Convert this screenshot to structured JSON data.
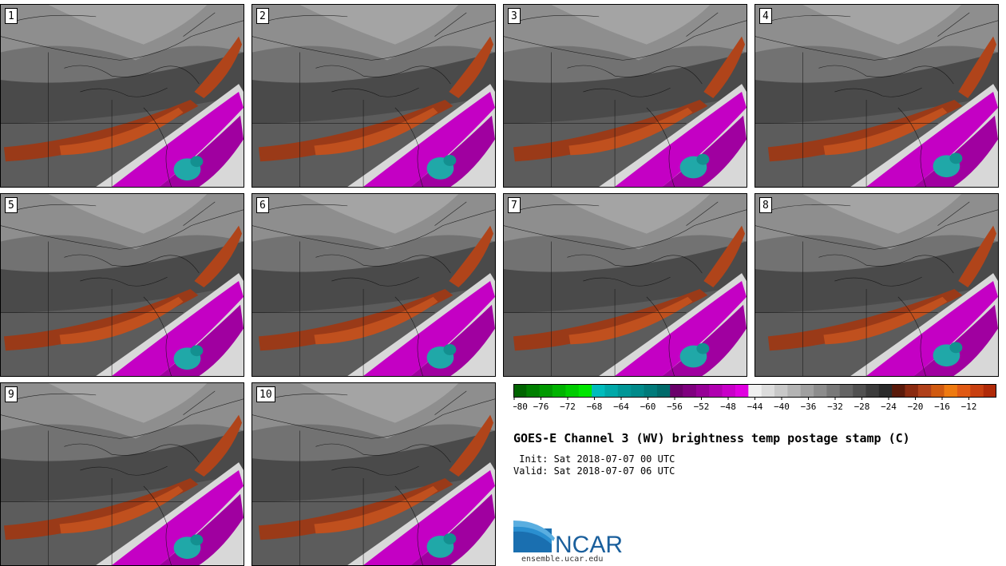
{
  "panels": [
    {
      "label": "1"
    },
    {
      "label": "2"
    },
    {
      "label": "3"
    },
    {
      "label": "4"
    },
    {
      "label": "5"
    },
    {
      "label": "6"
    },
    {
      "label": "7"
    },
    {
      "label": "8"
    },
    {
      "label": "9"
    },
    {
      "label": "10"
    }
  ],
  "colorbar": {
    "colors": [
      "#006400",
      "#007f00",
      "#009900",
      "#00b300",
      "#00cc00",
      "#00e600",
      "#00bcbc",
      "#00a8a8",
      "#009696",
      "#008a8a",
      "#007a7a",
      "#006a6a",
      "#6a006a",
      "#7f007f",
      "#960096",
      "#b000b0",
      "#c800c8",
      "#e000e0",
      "#f0f0f0",
      "#dcdcdc",
      "#c8c8c8",
      "#b4b4b4",
      "#a0a0a0",
      "#8c8c8c",
      "#787878",
      "#646464",
      "#505050",
      "#3c3c3c",
      "#2a2a2a",
      "#5a1a0a",
      "#8a2a10",
      "#b0401a",
      "#d05a10",
      "#ee7a10",
      "#e05a14",
      "#c84010",
      "#b02a08"
    ],
    "ticks": [
      "−80",
      "−76",
      "−72",
      "−68",
      "−64",
      "−60",
      "−56",
      "−52",
      "−48",
      "−44",
      "−40",
      "−36",
      "−32",
      "−28",
      "−24",
      "−20",
      "−16",
      "−12"
    ]
  },
  "title": "GOES-E Channel 3 (WV) brightness temp postage stamp (C)",
  "init": " Init: Sat 2018-07-07 00 UTC",
  "valid": "Valid: Sat 2018-07-07 06 UTC",
  "logo_text": "NCAR",
  "site": "ensemble.ucar.edu"
}
